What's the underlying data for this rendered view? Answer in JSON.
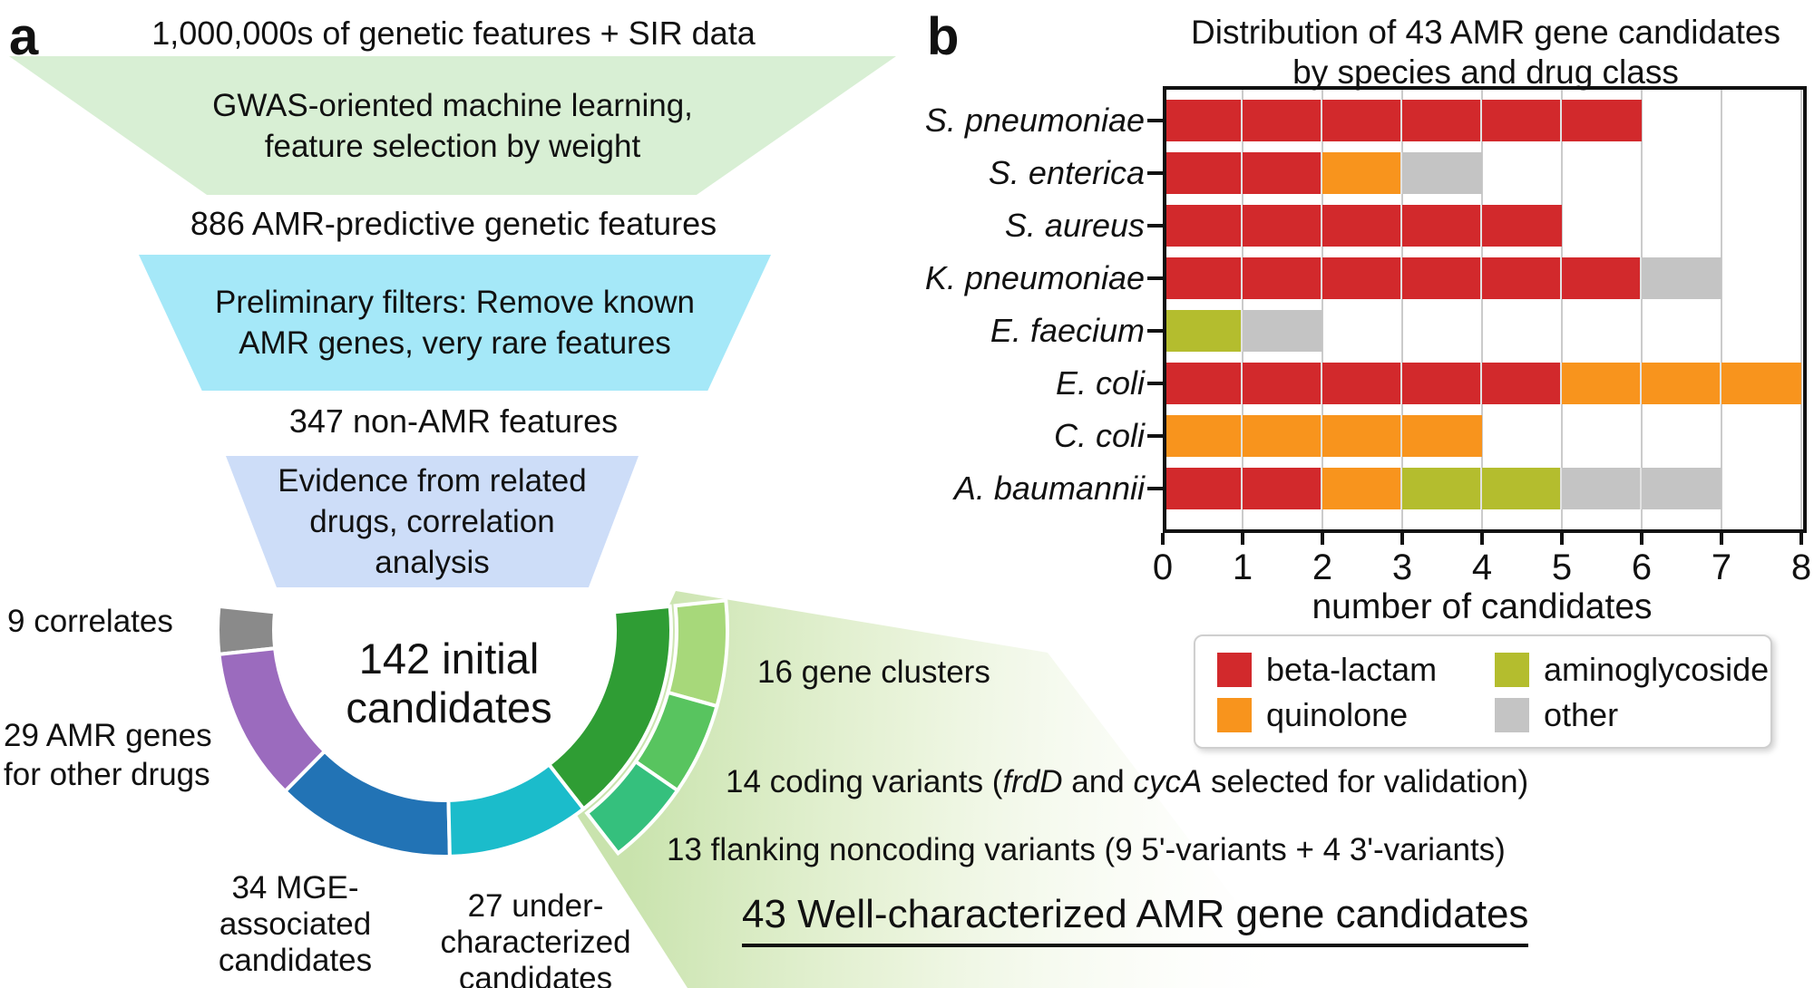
{
  "panel_a": {
    "label": "a",
    "stage_texts": [
      "1,000,000s of genetic features + SIR data",
      "886 AMR-predictive genetic features",
      "347 non-AMR features"
    ],
    "funnels": [
      {
        "text": "GWAS-oriented machine learning,\nfeature selection by weight",
        "color": "#d8efd4"
      },
      {
        "text": "Preliminary filters: Remove known\nAMR genes, very rare features",
        "color": "#a5e8f8"
      },
      {
        "text": "Evidence from related\ndrugs, correlation\nanalysis",
        "color": "#cdddf8"
      }
    ],
    "donut_labels": {
      "center": "142 initial\ncandidates",
      "correlates": "9 correlates",
      "amr_other": "29 AMR genes\nfor other drugs",
      "mge": "34 MGE-\nassociated\ncandidates",
      "under": "27 under-\ncharacterized\ncandidates"
    },
    "callouts": {
      "clusters": "16 gene clusters",
      "coding_pre": "14 coding variants (",
      "coding_gene1": "frdD",
      "coding_mid": " and ",
      "coding_gene2": "cycA",
      "coding_post": " selected for validation)",
      "flanking": "13 flanking noncoding variants (9 5'-variants + 4 3'-variants)",
      "total": "43 Well-characterized AMR gene candidates"
    }
  },
  "panel_b": {
    "label": "b"
  },
  "chart_data": [
    {
      "id": "species-drug-distribution",
      "type": "bar",
      "orientation": "horizontal",
      "stacked": true,
      "title": "Distribution of 43 AMR gene candidates\nby species and drug class",
      "categories": [
        "S. pneumoniae",
        "S. enterica",
        "S. aureus",
        "K. pneumoniae",
        "E. faecium",
        "E. coli",
        "C. coli",
        "A. baumannii"
      ],
      "series": [
        {
          "name": "beta-lactam",
          "color": "#d2292c",
          "values": [
            6,
            2,
            5,
            6,
            0,
            5,
            0,
            2
          ]
        },
        {
          "name": "quinolone",
          "color": "#f8941d",
          "values": [
            0,
            1,
            0,
            0,
            0,
            3,
            4,
            1
          ]
        },
        {
          "name": "aminoglycoside",
          "color": "#b4bd2e",
          "values": [
            0,
            0,
            0,
            0,
            1,
            0,
            0,
            2
          ]
        },
        {
          "name": "other",
          "color": "#c4c4c4",
          "values": [
            0,
            1,
            0,
            1,
            1,
            0,
            0,
            2
          ]
        }
      ],
      "totals": [
        6,
        4,
        5,
        7,
        2,
        8,
        4,
        7
      ],
      "xlabel": "number of candidates",
      "xlim": [
        0,
        8
      ],
      "xticks": [
        "0",
        "1",
        "2",
        "3",
        "4",
        "5",
        "6",
        "7",
        "8"
      ],
      "grid": true,
      "legend_position": "below",
      "legend_order_row_major": [
        0,
        2,
        1,
        3
      ]
    },
    {
      "id": "initial-candidates-donut",
      "type": "pie",
      "shape": "half-donut",
      "total": 142,
      "center_label": "142 initial candidates",
      "slices": [
        {
          "label": "9 correlates",
          "value": 9,
          "color": "#8a8a8a"
        },
        {
          "label": "29 AMR genes for other drugs",
          "value": 29,
          "color": "#9b6bbe"
        },
        {
          "label": "34 MGE-associated candidates",
          "value": 34,
          "color": "#2273b5"
        },
        {
          "label": "27 under-characterized candidates",
          "value": 27,
          "color": "#1bbccb"
        },
        {
          "label": "43 well-characterized AMR gene candidates",
          "value": 43,
          "color": "#2f9d34",
          "sub_slices": [
            {
              "label": "16 gene clusters",
              "value": 16,
              "color": "#a7d87a"
            },
            {
              "label": "14 coding variants",
              "value": 14,
              "color": "#58c45f"
            },
            {
              "label": "13 flanking noncoding variants",
              "value": 13,
              "color": "#35c07d"
            }
          ]
        }
      ]
    }
  ]
}
